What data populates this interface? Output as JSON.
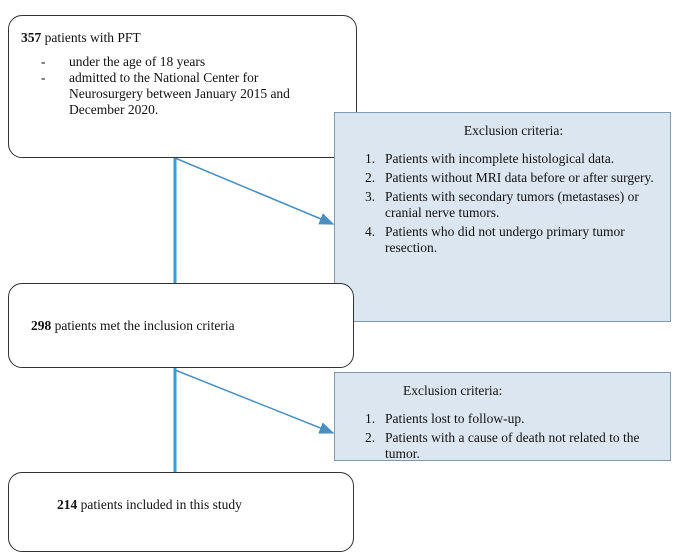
{
  "nodes": [
    {
      "count": "357",
      "label": " patients with PFT",
      "bullets": [
        {
          "mark": "-",
          "text": "under the age of 18 years"
        },
        {
          "mark": "-",
          "text": "admitted to the National Center for Neurosurgery between January 2015 and December 2020."
        }
      ]
    },
    {
      "count": "298",
      "label": " patients met the inclusion criteria"
    },
    {
      "count": "214",
      "label": " patients included in this study"
    }
  ],
  "exclusions": [
    {
      "title": "Exclusion criteria:",
      "items": [
        {
          "num": "1.",
          "text": "Patients with incomplete histological data."
        },
        {
          "num": "2.",
          "text": "Patients without MRI data before or after surgery."
        },
        {
          "num": "3.",
          "text": "Patients with secondary tumors (metastases) or cranial nerve tumors."
        },
        {
          "num": "4.",
          "text": "Patients who did not undergo primary tumor resection."
        }
      ]
    },
    {
      "title": "Exclusion criteria:",
      "items": [
        {
          "num": "1.",
          "text": "Patients lost to follow-up."
        },
        {
          "num": "2.",
          "text": "Patients with a cause of death not related to the tumor."
        }
      ]
    }
  ]
}
